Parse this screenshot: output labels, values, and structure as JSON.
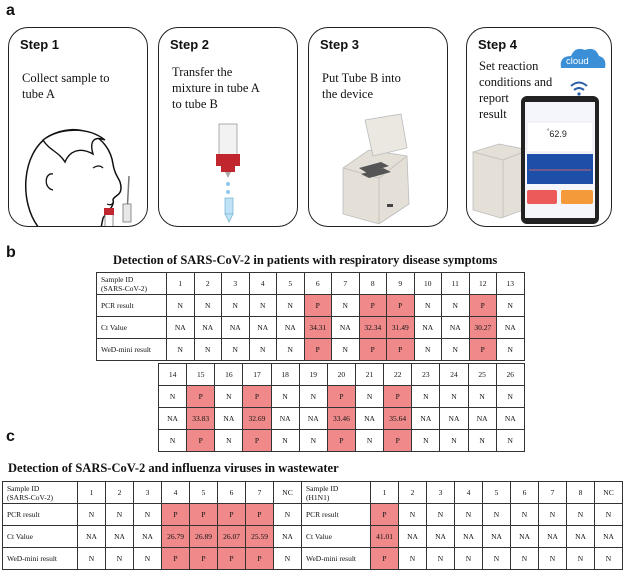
{
  "panel_labels": {
    "a": "a",
    "b": "b",
    "c": "c"
  },
  "steps": [
    {
      "title": "Step 1",
      "lines": [
        "Collect sample to",
        "tube A"
      ]
    },
    {
      "title": "Step 2",
      "lines": [
        "Transfer the",
        "mixture in tube A",
        "to tube B"
      ]
    },
    {
      "title": "Step 3",
      "lines": [
        "Put Tube B into",
        "the device"
      ]
    },
    {
      "title": "Step 4",
      "lines": [
        "Set reaction",
        "conditions and",
        "report",
        "result"
      ]
    }
  ],
  "step4_device": {
    "cloud_label": "cloud",
    "screen_reading": "62.9",
    "screen_reading_unit": "°",
    "button_labels": []
  },
  "colors": {
    "positive": "#f08a8a",
    "border": "#333333"
  },
  "section_b": {
    "title": "Detection of SARS-CoV-2 in patients with respiratory disease symptoms",
    "table": {
      "header_label": [
        "Sample ID",
        "(SARS-CoV-2)"
      ],
      "row_labels": [
        "PCR result",
        "Ct Value",
        "WeD-mini result"
      ],
      "part1": {
        "ids": [
          "1",
          "2",
          "3",
          "4",
          "5",
          "6",
          "7",
          "8",
          "9",
          "10",
          "11",
          "12",
          "13"
        ],
        "pcr": [
          "N",
          "N",
          "N",
          "N",
          "N",
          "P",
          "N",
          "P",
          "P",
          "N",
          "N",
          "P",
          "N"
        ],
        "ct": [
          "NA",
          "NA",
          "NA",
          "NA",
          "NA",
          "34.31",
          "NA",
          "32.34",
          "31.49",
          "NA",
          "NA",
          "30.27",
          "NA"
        ],
        "wed": [
          "N",
          "N",
          "N",
          "N",
          "N",
          "P",
          "N",
          "P",
          "P",
          "N",
          "N",
          "P",
          "N"
        ]
      },
      "part2": {
        "ids": [
          "14",
          "15",
          "16",
          "17",
          "18",
          "19",
          "20",
          "21",
          "22",
          "23",
          "24",
          "25",
          "26"
        ],
        "pcr": [
          "N",
          "P",
          "N",
          "P",
          "N",
          "N",
          "P",
          "N",
          "P",
          "N",
          "N",
          "N",
          "N"
        ],
        "ct": [
          "NA",
          "33.83",
          "NA",
          "32.69",
          "NA",
          "NA",
          "33.46",
          "NA",
          "35.64",
          "NA",
          "NA",
          "NA",
          "NA"
        ],
        "wed": [
          "N",
          "P",
          "N",
          "P",
          "N",
          "N",
          "P",
          "N",
          "P",
          "N",
          "N",
          "N",
          "N"
        ]
      }
    }
  },
  "section_c": {
    "title": "Detection of SARS-CoV-2 and influenza viruses in wastewater",
    "table_sars": {
      "header_label": [
        "Sample ID",
        "(SARS-CoV-2)"
      ],
      "row_labels": [
        "PCR result",
        "Ct Value",
        "WeD-mini result"
      ],
      "ids": [
        "1",
        "2",
        "3",
        "4",
        "5",
        "6",
        "7",
        "NC"
      ],
      "pcr": [
        "N",
        "N",
        "N",
        "P",
        "P",
        "P",
        "P",
        "N"
      ],
      "ct": [
        "NA",
        "NA",
        "NA",
        "26.79",
        "26.89",
        "26.07",
        "25.59",
        "NA"
      ],
      "wed": [
        "N",
        "N",
        "N",
        "P",
        "P",
        "P",
        "P",
        "N"
      ]
    },
    "table_flu": {
      "header_label": [
        "Sample ID",
        "(H1N1)"
      ],
      "row_labels": [
        "PCR result",
        "Ct Value",
        "WeD-mini result"
      ],
      "ids": [
        "1",
        "2",
        "3",
        "4",
        "5",
        "6",
        "7",
        "8",
        "NC"
      ],
      "pcr": [
        "P",
        "N",
        "N",
        "N",
        "N",
        "N",
        "N",
        "N",
        "N"
      ],
      "ct": [
        "41.01",
        "NA",
        "NA",
        "NA",
        "NA",
        "NA",
        "NA",
        "NA",
        "NA"
      ],
      "wed": [
        "P",
        "N",
        "N",
        "N",
        "N",
        "N",
        "N",
        "N",
        "N"
      ]
    }
  }
}
